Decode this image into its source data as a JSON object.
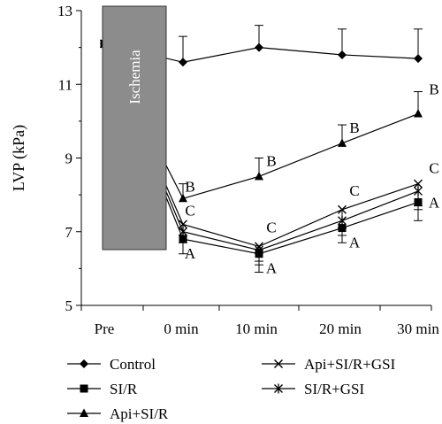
{
  "chart_data": {
    "type": "line",
    "ylabel": "LVP (kPa)",
    "xlabel": "",
    "x_categories": [
      "Pre",
      "0 min",
      "10 min",
      "20 min",
      "30 min"
    ],
    "y_ticks": [
      "5",
      "7",
      "9",
      "11",
      "13"
    ],
    "ylim": [
      5,
      13
    ],
    "grid": false,
    "legend_position": "bottom",
    "ischemia_label": "Ischemia",
    "pre_value": 12.1,
    "series": [
      {
        "name": "Control",
        "marker": "diamond",
        "values": [
          12.1,
          11.6,
          12.0,
          11.8,
          11.7
        ],
        "errors": [
          0.3,
          0.7,
          0.6,
          0.7,
          0.8
        ],
        "labels": [
          "",
          "",
          "",
          "",
          ""
        ]
      },
      {
        "name": "SI/R",
        "marker": "square",
        "values": [
          12.1,
          6.8,
          6.4,
          7.1,
          7.8
        ],
        "errors": [
          0.3,
          0.4,
          0.5,
          0.4,
          0.5
        ],
        "labels": [
          "",
          "A",
          "A",
          "A",
          "A"
        ]
      },
      {
        "name": "Api+SI/R",
        "marker": "triangle",
        "values": [
          12.1,
          7.9,
          8.5,
          9.4,
          10.2
        ],
        "errors": [
          0.3,
          0.4,
          0.5,
          0.5,
          0.6
        ],
        "labels": [
          "",
          "B",
          "B",
          "B",
          "B"
        ]
      },
      {
        "name": "Api+SI/R+GSI",
        "marker": "x",
        "values": [
          12.1,
          7.2,
          6.6,
          7.6,
          8.3
        ],
        "errors": [
          0.3,
          0.3,
          0.4,
          0.5,
          0.6
        ],
        "labels": [
          "",
          "C",
          "C",
          "C",
          "C"
        ]
      },
      {
        "name": "SI/R+GSI",
        "marker": "asterisk",
        "values": [
          12.1,
          7.0,
          6.5,
          7.3,
          8.1
        ],
        "errors": [
          0.3,
          0.3,
          0.4,
          0.4,
          0.5
        ],
        "labels": [
          "",
          "",
          "",
          "",
          ""
        ]
      }
    ]
  }
}
